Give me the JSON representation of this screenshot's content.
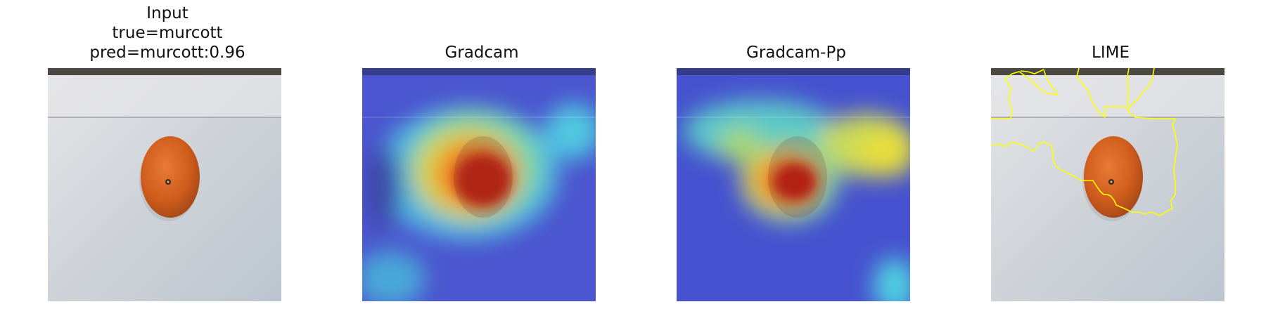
{
  "panels": [
    {
      "title_lines": [
        "Input",
        "true=murcott",
        "pred=murcott:0.96"
      ],
      "kind": "input"
    },
    {
      "title_lines": [
        "Gradcam"
      ],
      "kind": "gradcam"
    },
    {
      "title_lines": [
        "Gradcam-Pp"
      ],
      "kind": "gradcam-pp"
    },
    {
      "title_lines": [
        "LIME"
      ],
      "kind": "lime"
    }
  ],
  "colors": {
    "background_white": "#ffffff",
    "table_top": "#d9dde0",
    "fruit_orange": "#d4611c",
    "heat_blue": "#4a55d8",
    "lime_boundary": "#ffff00"
  }
}
